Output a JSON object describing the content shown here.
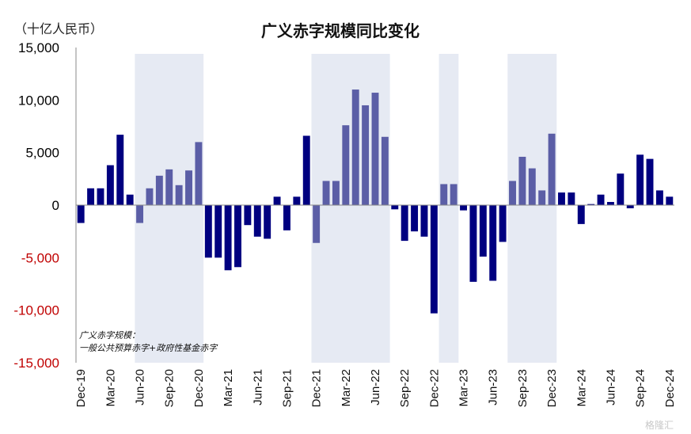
{
  "chart_data": {
    "type": "bar",
    "title": "广义赤字规模同比变化",
    "unit_label": "（十亿人民币）",
    "ylim": [
      -15000,
      15000
    ],
    "yticks": [
      15000,
      10000,
      5000,
      0,
      -5000,
      -10000,
      -15000
    ],
    "ytick_labels": [
      "15,000",
      "10,000",
      "5,000",
      "0",
      "-5,000",
      "-10,000",
      "-15,000"
    ],
    "ytick_colors": [
      "#000000",
      "#000000",
      "#000000",
      "#000000",
      "#c00000",
      "#c00000",
      "#c00000"
    ],
    "xtick_labels": [
      "Dec-19",
      "Mar-20",
      "Jun-20",
      "Sep-20",
      "Dec-20",
      "Mar-21",
      "Jun-21",
      "Sep-21",
      "Dec-21",
      "Mar-22",
      "Jun-22",
      "Sep-22",
      "Dec-22",
      "Mar-23",
      "Jun-23",
      "Sep-23",
      "Dec-23",
      "Mar-24",
      "Jun-24",
      "Sep-24",
      "Dec-24"
    ],
    "xtick_every": 3,
    "values": [
      -1700,
      1600,
      1600,
      3800,
      6700,
      1000,
      -1700,
      1600,
      2800,
      3400,
      1900,
      3300,
      6000,
      -5000,
      -5000,
      -6200,
      -5900,
      -1900,
      -3000,
      -3200,
      800,
      -2400,
      800,
      6600,
      -3600,
      2300,
      2300,
      7600,
      11000,
      9500,
      10700,
      6500,
      -400,
      -3400,
      -2500,
      -3000,
      -10300,
      2000,
      2000,
      -500,
      -7300,
      -4900,
      -7200,
      -3500,
      2300,
      4600,
      3500,
      1400,
      6800,
      1200,
      1200,
      -1800,
      100,
      1000,
      300,
      3000,
      -300,
      4800,
      4400,
      1400,
      800
    ],
    "shaded_ranges": [
      [
        6,
        12
      ],
      [
        24,
        31
      ],
      [
        37,
        38
      ],
      [
        44,
        48
      ]
    ],
    "colors": {
      "normal": "#000080",
      "shaded": "#5b5ea6",
      "band": "#e6eaf3"
    },
    "legend": [
      "广义赤字规模：",
      "一般公共预算赤字+政府性基金赤字"
    ],
    "grid": false
  },
  "watermark": "格隆汇"
}
